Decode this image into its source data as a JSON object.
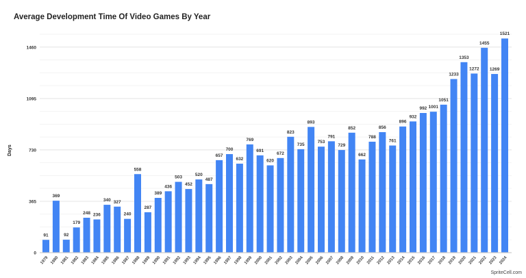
{
  "header": {
    "title": "Average Development Time Of Video Games By Year"
  },
  "footer": {
    "watermark": "SpriteCell.com"
  },
  "colors": {
    "bar": "#4285F4",
    "grid_major": "#e6e6e6",
    "grid_minor": "#f3f3f3",
    "axis": "#cccccc"
  },
  "chart_data": {
    "type": "bar",
    "title": "Average Development Time Of Video Games By Year",
    "xlabel": "",
    "ylabel": "Days",
    "ylim": [
      0,
      1551.25
    ],
    "yticks": [
      0,
      365,
      730,
      1095,
      1460
    ],
    "grid": true,
    "legend": null,
    "data_labels": true,
    "categories": [
      "1979",
      "1980",
      "1981",
      "1982",
      "1983",
      "1984",
      "1985",
      "1986",
      "1987",
      "1988",
      "1989",
      "1990",
      "1991",
      "1992",
      "1993",
      "1994",
      "1995",
      "1996",
      "1997",
      "1998",
      "1999",
      "2000",
      "2001",
      "2002",
      "2003",
      "2004",
      "2005",
      "2006",
      "2007",
      "2008",
      "2009",
      "2010",
      "2011",
      "2012",
      "2013",
      "2014",
      "2015",
      "2016",
      "2017",
      "2018",
      "2019",
      "2020",
      "2021",
      "2022",
      "2023",
      "2024"
    ],
    "values": [
      91,
      369,
      92,
      179,
      248,
      236,
      340,
      327,
      240,
      558,
      287,
      389,
      436,
      503,
      452,
      520,
      487,
      657,
      700,
      632,
      769,
      691,
      620,
      672,
      823,
      735,
      893,
      753,
      791,
      729,
      852,
      662,
      788,
      856,
      761,
      896,
      932,
      992,
      1001,
      1051,
      1233,
      1353,
      1272,
      1455,
      1269,
      1521
    ]
  }
}
